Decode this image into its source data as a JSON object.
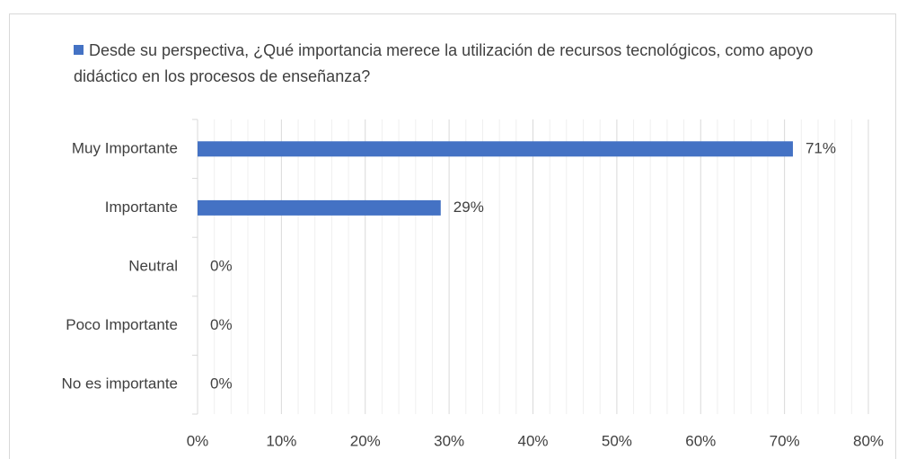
{
  "chart_data": {
    "type": "barh",
    "categories": [
      "Muy Importante",
      "Importante",
      "Neutral",
      "Poco Importante",
      "No es importante"
    ],
    "series": [
      {
        "name": "Desde su perspectiva, ¿Qué importancia merece la utilización de recursos tecnológicos, como apoyo didáctico en los procesos de enseñanza?",
        "color": "#4472c4",
        "values": [
          71,
          29,
          0,
          0,
          0
        ],
        "value_labels": [
          "71%",
          "29%",
          "0%",
          "0%",
          "0%"
        ]
      }
    ],
    "xlim": [
      0,
      80
    ],
    "xticks": [
      {
        "value": 0,
        "label": "0%"
      },
      {
        "value": 10,
        "label": "10%"
      },
      {
        "value": 20,
        "label": "20%"
      },
      {
        "value": 30,
        "label": "30%"
      },
      {
        "value": 40,
        "label": "40%"
      },
      {
        "value": 50,
        "label": "50%"
      },
      {
        "value": 60,
        "label": "60%"
      },
      {
        "value": 70,
        "label": "70%"
      },
      {
        "value": 80,
        "label": "80%"
      }
    ],
    "xminor_ticks": [
      2,
      4,
      6,
      8,
      12,
      14,
      16,
      18,
      22,
      24,
      26,
      28,
      32,
      34,
      36,
      38,
      42,
      44,
      46,
      48,
      52,
      54,
      56,
      58,
      62,
      64,
      66,
      68,
      72,
      74,
      76,
      78
    ],
    "grid": true,
    "legend": "top"
  }
}
